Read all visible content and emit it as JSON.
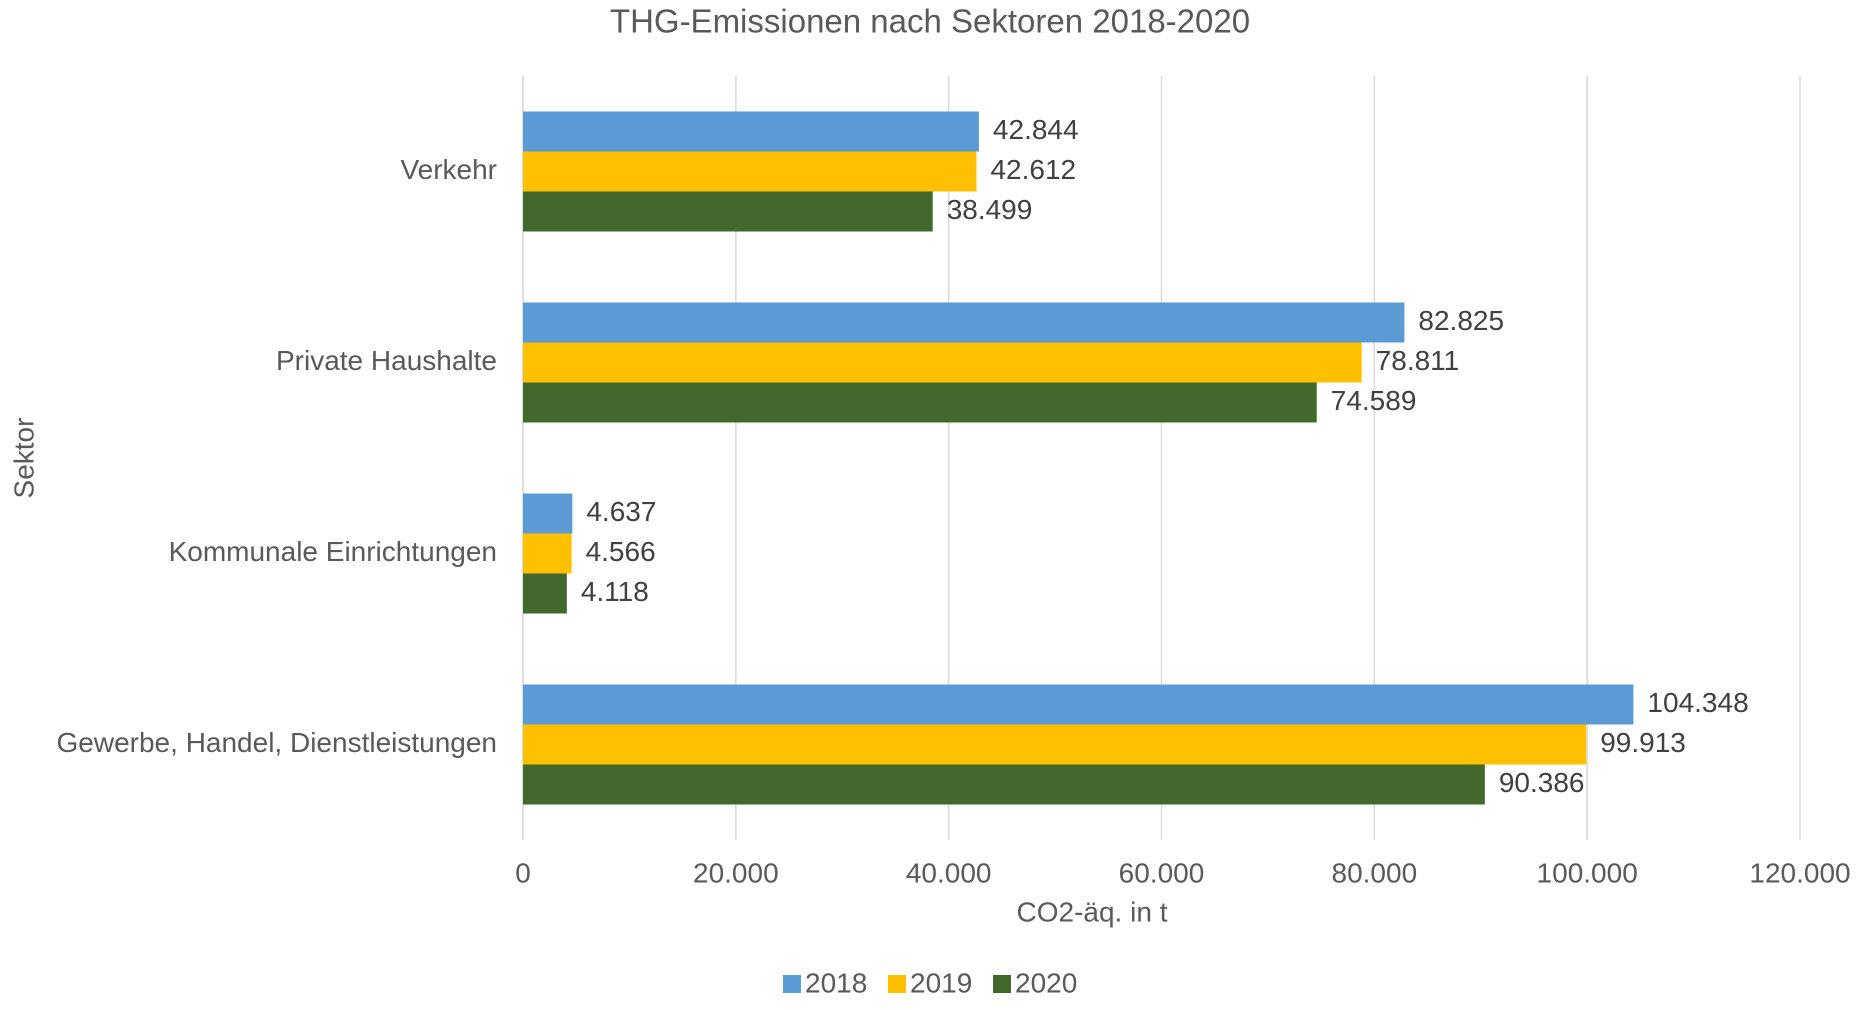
{
  "chart_data": {
    "type": "hbar",
    "title": "THG-Emissionen nach Sektoren 2018-2020",
    "x_label": "CO2-äq. in t",
    "y_label": "Sektor",
    "categories": [
      "Verkehr",
      "Private Haushalte",
      "Kommunale Einrichtungen",
      "Gewerbe, Handel, Dienstleistungen"
    ],
    "series": [
      {
        "name": "2018",
        "color": "#5b9bd5",
        "values": [
          42844,
          82825,
          4637,
          104348
        ],
        "value_labels": [
          "42.844",
          "82.825",
          "4.637",
          "104.348"
        ]
      },
      {
        "name": "2019",
        "color": "#ffc000",
        "values": [
          42612,
          78811,
          4566,
          99913
        ],
        "value_labels": [
          "42.612",
          "78.811",
          "4.566",
          "99.913"
        ]
      },
      {
        "name": "2020",
        "color": "#43682b",
        "values": [
          38499,
          74589,
          4118,
          90386
        ],
        "value_labels": [
          "38.499",
          "74.589",
          "4.118",
          "90.386"
        ]
      }
    ],
    "xlim": [
      0,
      120000
    ],
    "xticks": [
      0,
      {
        "value": 20000,
        "label": "20.000"
      },
      {
        "value": 40000,
        "label": "40.000"
      },
      {
        "value": 60000,
        "label": "60.000"
      },
      {
        "value": 80000,
        "label": "80.000"
      },
      {
        "value": 100000,
        "label": "100.000"
      },
      {
        "value": 120000,
        "label": "120.000"
      }
    ],
    "grid": true,
    "legend": "bottom"
  }
}
